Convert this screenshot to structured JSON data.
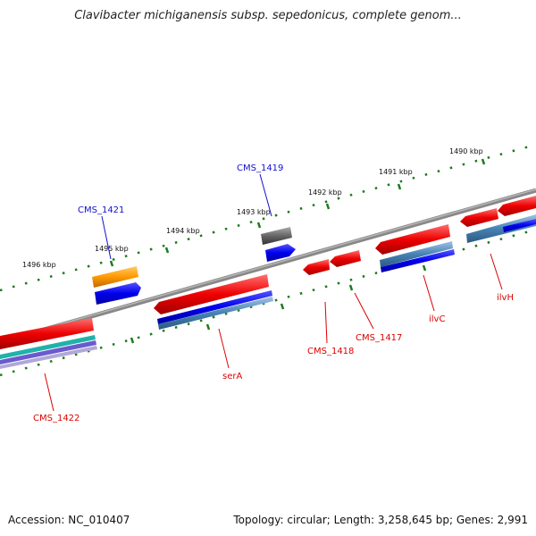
{
  "header": {
    "title": "Clavibacter michiganensis subsp. sepedonicus, complete genom..."
  },
  "footer": {
    "accession": "Accession: NC_010407",
    "topology": "Topology: circular; Length: 3,258,645 bp; Genes: 2,991"
  },
  "scale": {
    "ticks": [
      "1496 kbp",
      "1495 kbp",
      "1494 kbp",
      "1493 kbp",
      "1492 kbp",
      "1491 kbp",
      "1490 kbp"
    ]
  },
  "genes": {
    "cms1421": "CMS_1421",
    "cms1419": "CMS_1419",
    "cms1422": "CMS_1422",
    "serA": "serA",
    "cms1418": "CMS_1418",
    "cms1417": "CMS_1417",
    "ilvC": "ilvC",
    "ilvH": "ilvH"
  },
  "colors": {
    "forward_feature": "#1111cc",
    "reverse_feature": "#dd0000",
    "backbone": "#808080",
    "tick_dots": "#1f7a1f",
    "cds_blue": "#0000ee",
    "cds_red": "#ee0000",
    "orange_feature": "#ff9900",
    "gray_feature": "#666666",
    "steelblue_feature": "#4682b4",
    "teal_feature": "#20b2aa",
    "purple_feature": "#6a5acd"
  }
}
